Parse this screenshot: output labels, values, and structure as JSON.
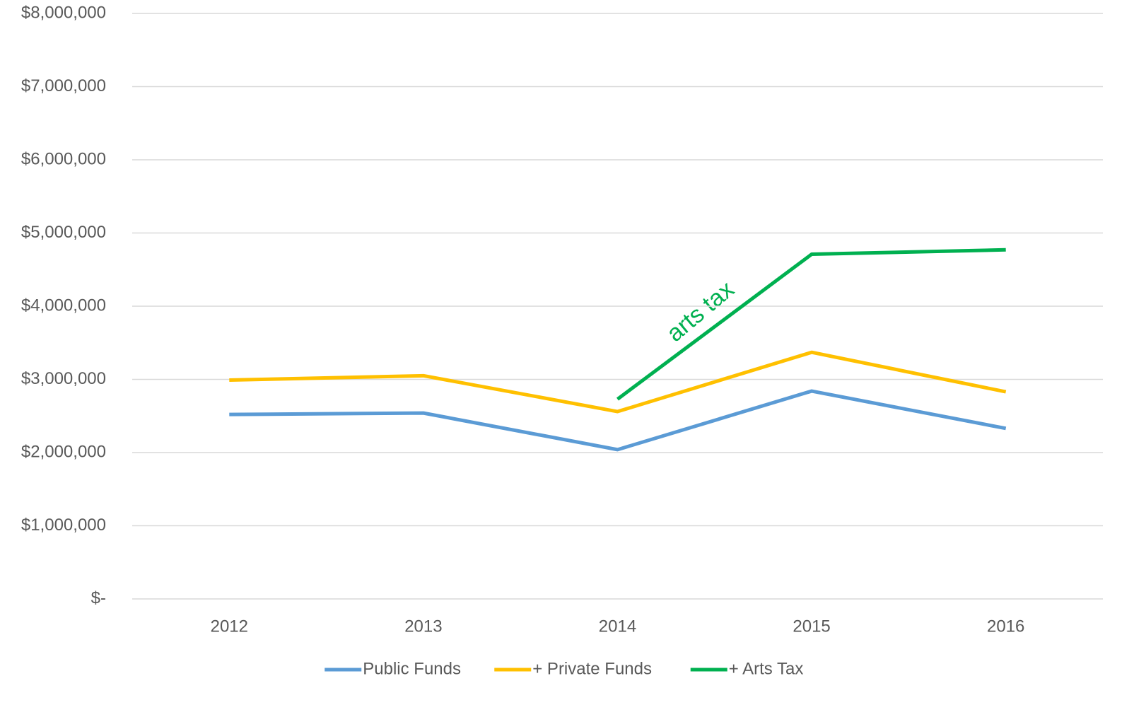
{
  "chart_data": {
    "type": "line",
    "categories": [
      "2012",
      "2013",
      "2014",
      "2015",
      "2016"
    ],
    "series": [
      {
        "name": "Public Funds",
        "color": "#5b9bd5",
        "values": [
          2520000,
          2540000,
          2040000,
          2840000,
          2330000
        ]
      },
      {
        "name": "+ Private Funds",
        "color": "#ffc000",
        "values": [
          2990000,
          3050000,
          2560000,
          3370000,
          2830000
        ]
      },
      {
        "name": "+ Arts Tax",
        "color": "#00b050",
        "values": [
          null,
          null,
          2730000,
          4710000,
          4770000
        ]
      }
    ],
    "ylim": [
      0,
      8000000
    ],
    "yticks": [
      {
        "value": 0,
        "label": "$-"
      },
      {
        "value": 1000000,
        "label": "$1,000,000"
      },
      {
        "value": 2000000,
        "label": "$2,000,000"
      },
      {
        "value": 3000000,
        "label": "$3,000,000"
      },
      {
        "value": 4000000,
        "label": "$4,000,000"
      },
      {
        "value": 5000000,
        "label": "$5,000,000"
      },
      {
        "value": 6000000,
        "label": "$6,000,000"
      },
      {
        "value": 7000000,
        "label": "$7,000,000"
      },
      {
        "value": 8000000,
        "label": "$8,000,000"
      }
    ],
    "grid": true,
    "legend": "bottom",
    "annotation": "arts tax"
  }
}
